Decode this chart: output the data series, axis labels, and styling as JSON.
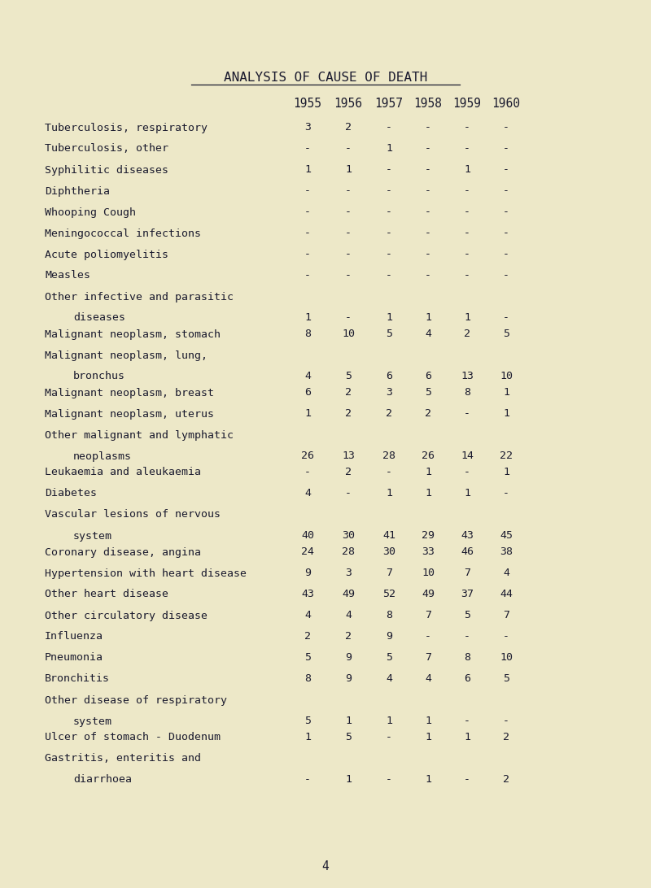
{
  "title": "ANALYSIS OF CAUSE OF DEATH",
  "years": [
    "1955",
    "1956",
    "1957",
    "1958",
    "1959",
    "1960"
  ],
  "rows": [
    {
      "label": "Tuberculosis, respiratory",
      "label2": null,
      "values": [
        "3",
        "2",
        "-",
        "-",
        "-",
        "-"
      ]
    },
    {
      "label": "Tuberculosis, other",
      "label2": null,
      "values": [
        "-",
        "-",
        "1",
        "-",
        "-",
        "-"
      ]
    },
    {
      "label": "Syphilitic diseases",
      "label2": null,
      "values": [
        "1",
        "1",
        "-",
        "-",
        "1",
        "-"
      ]
    },
    {
      "label": "Diphtheria",
      "label2": null,
      "values": [
        "-",
        "-",
        "-",
        "-",
        "-",
        "-"
      ]
    },
    {
      "label": "Whooping Cough",
      "label2": null,
      "values": [
        "-",
        "-",
        "-",
        "-",
        "-",
        "-"
      ]
    },
    {
      "label": "Meningococcal infections",
      "label2": null,
      "values": [
        "-",
        "-",
        "-",
        "-",
        "-",
        "-"
      ]
    },
    {
      "label": "Acute poliomyelitis",
      "label2": null,
      "values": [
        "-",
        "-",
        "-",
        "-",
        "-",
        "-"
      ]
    },
    {
      "label": "Measles",
      "label2": null,
      "values": [
        "-",
        "-",
        "-",
        "-",
        "-",
        "-"
      ]
    },
    {
      "label": "Other infective and parasitic",
      "label2": "diseases",
      "values": [
        "1",
        "-",
        "1",
        "1",
        "1",
        "-"
      ]
    },
    {
      "label": "Malignant neoplasm, stomach",
      "label2": null,
      "values": [
        "8",
        "10",
        "5",
        "4",
        "2",
        "5"
      ]
    },
    {
      "label": "Malignant neoplasm, lung,",
      "label2": "bronchus",
      "values": [
        "4",
        "5",
        "6",
        "6",
        "13",
        "10"
      ]
    },
    {
      "label": "Malignant neoplasm, breast",
      "label2": null,
      "values": [
        "6",
        "2",
        "3",
        "5",
        "8",
        "1"
      ]
    },
    {
      "label": "Malignant neoplasm, uterus",
      "label2": null,
      "values": [
        "1",
        "2",
        "2",
        "2",
        "-",
        "1"
      ]
    },
    {
      "label": "Other malignant and lymphatic",
      "label2": "neoplasms",
      "values": [
        "26",
        "13",
        "28",
        "26",
        "14",
        "22"
      ]
    },
    {
      "label": "Leukaemia and aleukaemia",
      "label2": null,
      "values": [
        "-",
        "2",
        "-",
        "1",
        "-",
        "1"
      ]
    },
    {
      "label": "Diabetes",
      "label2": null,
      "values": [
        "4",
        "-",
        "1",
        "1",
        "1",
        "-"
      ]
    },
    {
      "label": "Vascular lesions of nervous",
      "label2": "system",
      "values": [
        "40",
        "30",
        "41",
        "29",
        "43",
        "45"
      ]
    },
    {
      "label": "Coronary disease, angina",
      "label2": null,
      "values": [
        "24",
        "28",
        "30",
        "33",
        "46",
        "38"
      ]
    },
    {
      "label": "Hypertension with heart disease",
      "label2": null,
      "values": [
        "9",
        "3",
        "7",
        "10",
        "7",
        "4"
      ]
    },
    {
      "label": "Other heart disease",
      "label2": null,
      "values": [
        "43",
        "49",
        "52",
        "49",
        "37",
        "44"
      ]
    },
    {
      "label": "Other circulatory disease",
      "label2": null,
      "values": [
        "4",
        "4",
        "8",
        "7",
        "5",
        "7"
      ]
    },
    {
      "label": "Influenza",
      "label2": null,
      "values": [
        "2",
        "2",
        "9",
        "-",
        "-",
        "-"
      ]
    },
    {
      "label": "Pneumonia",
      "label2": null,
      "values": [
        "5",
        "9",
        "5",
        "7",
        "8",
        "10"
      ]
    },
    {
      "label": "Bronchitis",
      "label2": null,
      "values": [
        "8",
        "9",
        "4",
        "4",
        "6",
        "5"
      ]
    },
    {
      "label": "Other disease of respiratory",
      "label2": "system",
      "values": [
        "5",
        "1",
        "1",
        "1",
        "-",
        "-"
      ]
    },
    {
      "label": "Ulcer of stomach - Duodenum",
      "label2": null,
      "values": [
        "1",
        "5",
        "-",
        "1",
        "1",
        "2"
      ]
    },
    {
      "label": "Gastritis, enteritis and",
      "label2": "diarrhoea",
      "values": [
        "-",
        "1",
        "-",
        "1",
        "-",
        "2"
      ]
    }
  ],
  "footer": "4",
  "bg_color": "#ede8c8",
  "text_color": "#1a1a2e",
  "title_fontsize": 11.5,
  "header_fontsize": 10.5,
  "row_fontsize": 9.5,
  "font_family": "DejaVu Sans Mono"
}
